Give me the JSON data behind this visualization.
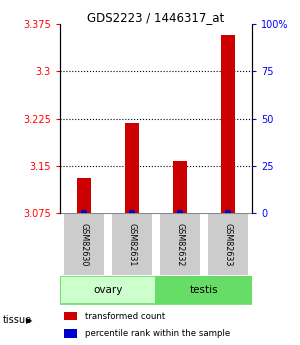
{
  "title": "GDS2223 / 1446317_at",
  "samples": [
    "GSM82630",
    "GSM82631",
    "GSM82632",
    "GSM82633"
  ],
  "red_values": [
    3.13,
    3.218,
    3.157,
    3.358
  ],
  "ymin": 3.075,
  "ymax": 3.375,
  "yticks_left": [
    3.075,
    3.15,
    3.225,
    3.3,
    3.375
  ],
  "yticks_right": [
    0,
    25,
    50,
    75,
    100
  ],
  "tissue_labels": [
    "ovary",
    "testis"
  ],
  "tissue_color_light": "#ccffcc",
  "tissue_color_mid": "#66dd66",
  "sample_bg": "#cccccc",
  "bar_color": "#cc0000",
  "blue_marker_color": "#0000cc",
  "legend_red": "transformed count",
  "legend_blue": "percentile rank within the sample",
  "tissue_label": "tissue"
}
